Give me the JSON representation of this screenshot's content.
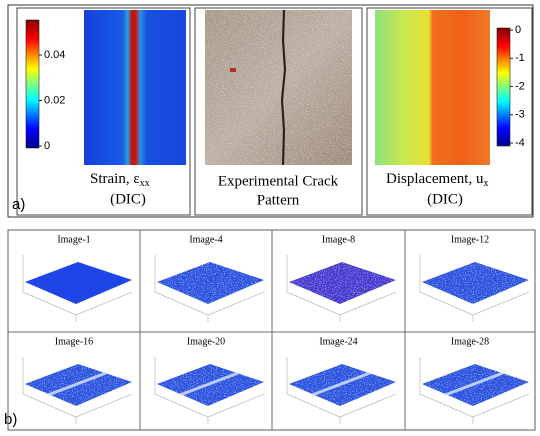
{
  "panel_a": {
    "label": "a)",
    "strain": {
      "caption_main": "Strain, ε",
      "caption_sub": "xx",
      "caption_line2": "(DIC)",
      "colorbar_ticks": [
        0,
        0.02,
        0.04
      ]
    },
    "crack": {
      "caption_line1": "Experimental Crack",
      "caption_line2": "Pattern"
    },
    "displacement": {
      "caption_main": "Displacement, u",
      "caption_sub": "x",
      "caption_line2": "(DIC)",
      "colorbar_ticks": [
        0,
        -1,
        -2,
        -3,
        -4
      ]
    }
  },
  "panel_b": {
    "label": "b)",
    "images": [
      "Image-1",
      "Image-4",
      "Image-8",
      "Image-12",
      "Image-16",
      "Image-20",
      "Image-24",
      "Image-28"
    ]
  }
}
